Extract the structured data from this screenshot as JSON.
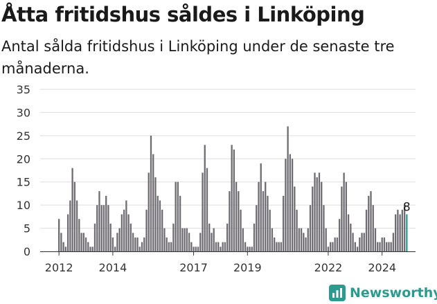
{
  "title": "Åtta fritidshus såldes i Linköping",
  "subtitle": "Antal sålda fritidshus i Linköping under de senaste tre månaderna.",
  "brand": {
    "name": "Newsworthy",
    "color": "#2b9b8f"
  },
  "colors": {
    "bar": "#6e6c70",
    "highlight": "#2b9b8f",
    "grid": "#dddddd"
  },
  "chart_data": {
    "type": "bar",
    "start_year": 2012,
    "start_month": 1,
    "ylim": [
      0,
      35
    ],
    "yticks": [
      0,
      5,
      10,
      15,
      20,
      25,
      30,
      35
    ],
    "xticks": [
      "2012",
      "2014",
      "2017",
      "2019",
      "2022",
      "2024"
    ],
    "last_label": "8",
    "grid": true,
    "values": [
      7,
      4,
      2,
      1,
      8,
      11,
      18,
      15,
      11,
      7,
      4,
      4,
      3,
      2,
      1,
      1,
      6,
      10,
      13,
      10,
      10,
      12,
      10,
      6,
      3,
      1,
      4,
      5,
      8,
      9,
      11,
      8,
      6,
      4,
      3,
      3,
      1,
      2,
      3,
      9,
      17,
      25,
      21,
      16,
      12,
      11,
      9,
      5,
      3,
      2,
      2,
      6,
      15,
      15,
      12,
      5,
      5,
      5,
      4,
      2,
      1,
      1,
      1,
      4,
      17,
      23,
      18,
      6,
      4,
      5,
      2,
      2,
      1,
      2,
      2,
      6,
      13,
      23,
      22,
      15,
      13,
      9,
      5,
      2,
      1,
      1,
      1,
      6,
      10,
      15,
      19,
      13,
      15,
      12,
      9,
      5,
      3,
      2,
      2,
      2,
      12,
      20,
      27,
      21,
      20,
      14,
      9,
      5,
      5,
      4,
      3,
      5,
      10,
      14,
      17,
      16,
      17,
      15,
      10,
      5,
      1,
      2,
      2,
      3,
      3,
      7,
      14,
      17,
      15,
      8,
      6,
      4,
      2,
      1,
      3,
      4,
      4,
      9,
      12,
      13,
      10,
      5,
      2,
      2,
      3,
      3,
      2,
      2,
      2,
      4,
      8,
      9,
      8,
      9,
      10,
      8
    ]
  }
}
